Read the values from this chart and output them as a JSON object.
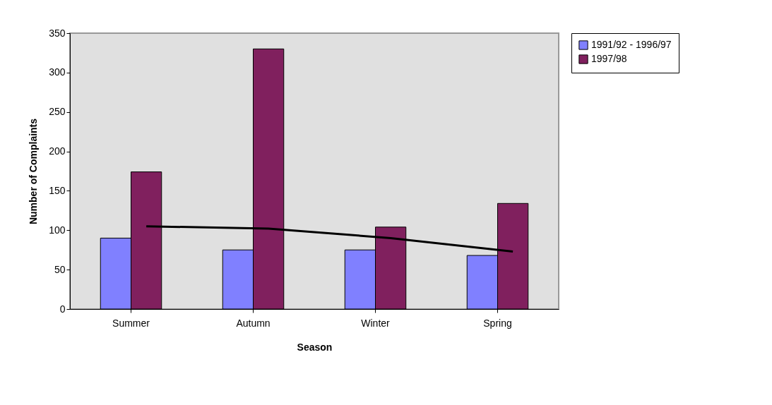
{
  "chart_data": {
    "type": "bar",
    "xlabel": "Season",
    "ylabel": "Number of Complaints",
    "categories": [
      "Summer",
      "Autumn",
      "Winter",
      "Spring"
    ],
    "series": [
      {
        "name": "1991/92 - 1996/97",
        "color": "#8080ff",
        "values": [
          90,
          75,
          75,
          68
        ]
      },
      {
        "name": "1997/98",
        "color": "#80205e",
        "values": [
          174,
          330,
          104,
          134
        ]
      },
      {
        "type": "line",
        "color": "#000000",
        "line_style": "solid",
        "marker": "none",
        "values": [
          105,
          102,
          90,
          73
        ]
      }
    ],
    "ylim": [
      0,
      350
    ],
    "yticks": [
      0,
      50,
      100,
      150,
      200,
      250,
      300,
      350
    ],
    "grid": false,
    "legend": "right"
  }
}
